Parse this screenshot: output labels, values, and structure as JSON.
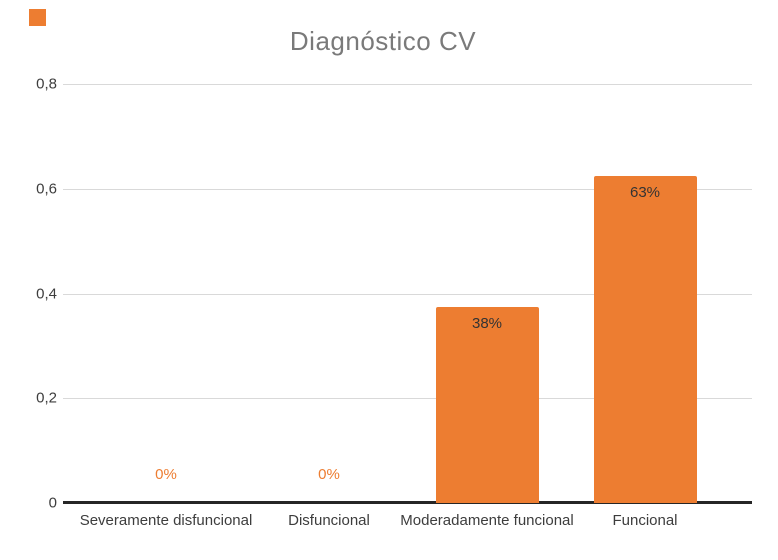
{
  "decoration": {
    "orange_square_color": "#ED7D31"
  },
  "chart_data": {
    "type": "bar",
    "title": "Diagnóstico CV",
    "categories": [
      "Severamente disfuncional",
      "Disfuncional",
      "Moderadamente funcional",
      "Funcional"
    ],
    "values": [
      0,
      0,
      0.375,
      0.625
    ],
    "data_labels": [
      "0%",
      "0%",
      "38%",
      "63%"
    ],
    "xlabel": "",
    "ylabel": "",
    "ylim": [
      0,
      0.8
    ],
    "yticks": [
      {
        "value": 0,
        "label": "0"
      },
      {
        "value": 0.2,
        "label": "0,2"
      },
      {
        "value": 0.4,
        "label": "0,4"
      },
      {
        "value": 0.6,
        "label": "0,6"
      },
      {
        "value": 0.8,
        "label": "0,8"
      }
    ],
    "grid": true,
    "legend": false,
    "decimal_separator": ",",
    "colors": {
      "bar": "#ED7D31",
      "zero_label": "#ED7D31",
      "data_label": "#333333",
      "axis_label": "#3d3d3d",
      "gridline": "#d9d9d9",
      "axis_line": "#262626",
      "title": "#7a7a7a"
    }
  }
}
